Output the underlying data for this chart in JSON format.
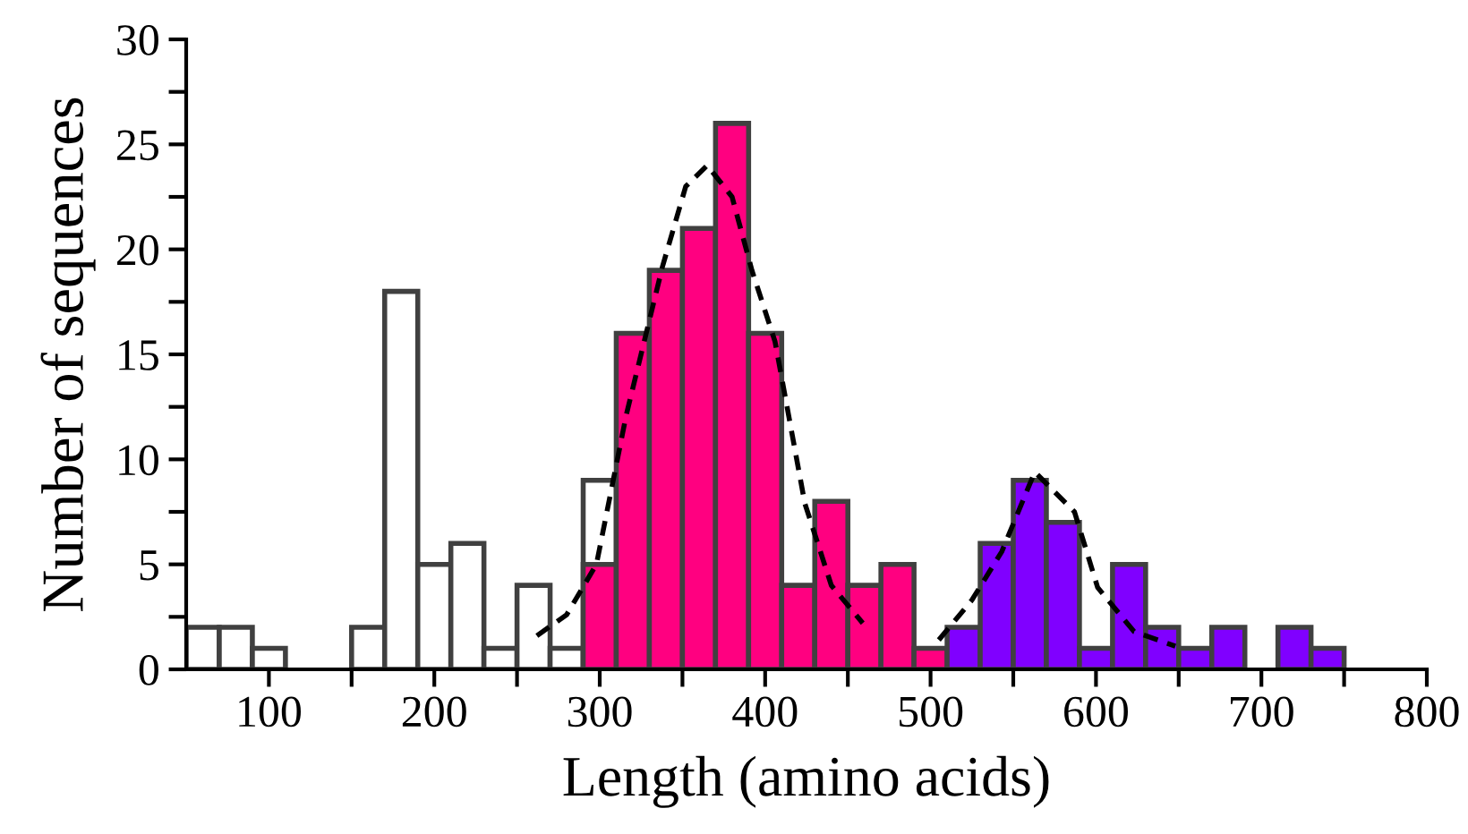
{
  "chart_data": {
    "type": "histogram",
    "xlabel": "Length (amino acids)",
    "ylabel": "Number of sequences",
    "xlim": [
      50,
      800
    ],
    "ylim": [
      0,
      30
    ],
    "xticks": [
      100,
      {
        "value": 150,
        "label": null
      },
      200,
      {
        "value": 250,
        "label": null
      },
      300,
      {
        "value": 350,
        "label": null
      },
      400,
      {
        "value": 450,
        "label": null
      },
      500,
      {
        "value": 550,
        "label": null
      },
      600,
      {
        "value": 650,
        "label": null
      },
      700,
      {
        "value": 750,
        "label": null
      },
      800
    ],
    "yticks": [
      0,
      {
        "value": 2.5,
        "label": null
      },
      5,
      {
        "value": 7.5,
        "label": null
      },
      10,
      {
        "value": 12.5,
        "label": null
      },
      15,
      {
        "value": 17.5,
        "label": null
      },
      20,
      {
        "value": 22.5,
        "label": null
      },
      25,
      {
        "value": 27.5,
        "label": null
      },
      30
    ],
    "grid": false,
    "legend": false,
    "series": [
      {
        "color": "#ffffff",
        "bins": [
          50,
          70,
          90,
          110,
          130,
          150,
          170,
          190,
          210,
          230,
          250,
          270,
          290,
          310
        ],
        "values": [
          2,
          2,
          1,
          0,
          0,
          2,
          18,
          5,
          6,
          1,
          4,
          1,
          9
        ]
      },
      {
        "color": "#ff0080",
        "bins": [
          290,
          310,
          330,
          350,
          370,
          390,
          410,
          430,
          450,
          470,
          490,
          510
        ],
        "values": [
          5,
          16,
          19,
          21,
          26,
          16,
          4,
          8,
          4,
          5,
          1
        ]
      },
      {
        "color": "#8000ff",
        "bins": [
          510,
          530,
          550,
          570,
          590,
          610,
          630,
          650,
          670,
          690,
          710,
          730,
          750
        ],
        "values": [
          2,
          6,
          9,
          7,
          1,
          5,
          2,
          1,
          2,
          0,
          2,
          1
        ]
      },
      {
        "type": "line",
        "color": "#000000",
        "line_style": "dashed",
        "x": [
          262,
          280,
          298,
          316,
          338,
          352,
          365,
          380,
          392,
          406,
          424,
          440,
          459
        ],
        "values": [
          1.6,
          2.6,
          5.0,
          12.1,
          19.2,
          23,
          24.0,
          22.5,
          19,
          15.6,
          7.9,
          4,
          2.2
        ]
      },
      {
        "type": "line",
        "color": "#000000",
        "line_style": "dashed",
        "x": [
          505,
          525,
          543,
          563,
          587,
          601,
          623,
          648
        ],
        "values": [
          1.4,
          3.3,
          5.6,
          9.4,
          7.5,
          3.9,
          1.8,
          1.1
        ]
      }
    ]
  }
}
